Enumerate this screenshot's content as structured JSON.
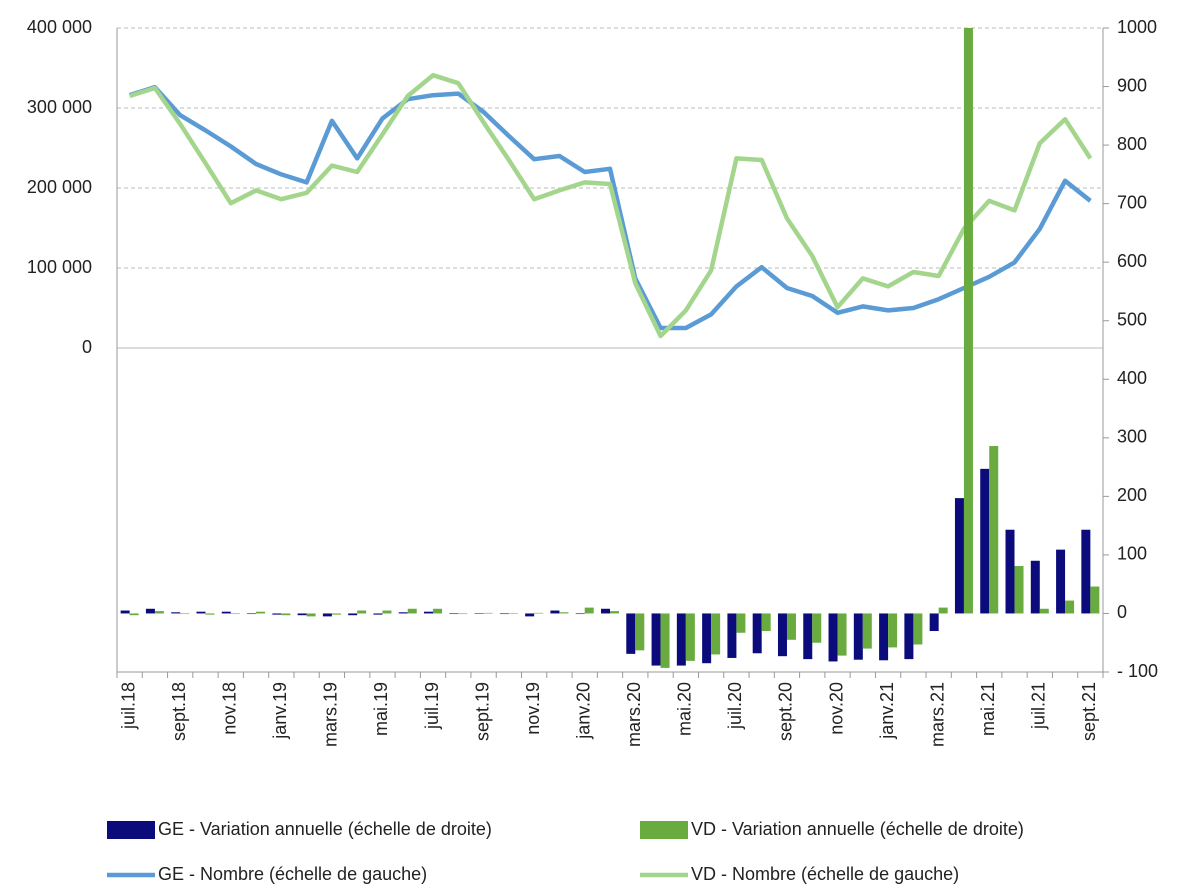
{
  "chart_data": {
    "type": "combo",
    "categories": [
      "juil.18",
      null,
      "sept.18",
      null,
      "nov.18",
      null,
      "janv.19",
      null,
      "mars.19",
      null,
      "mai.19",
      null,
      "juil.19",
      null,
      "sept.19",
      null,
      "nov.19",
      null,
      "janv.20",
      null,
      "mars.20",
      null,
      "mai.20",
      null,
      "juil.20",
      null,
      "sept.20",
      null,
      "nov.20",
      null,
      "janv.21",
      null,
      "mars.21",
      null,
      "mai.21",
      null,
      "juil.21",
      null,
      "sept.21"
    ],
    "ylim": [
      -405000,
      400000
    ],
    "yticks": [
      0,
      {
        "value": 100000,
        "label": "100 000"
      },
      {
        "value": 200000,
        "label": "200 000"
      },
      {
        "value": 300000,
        "label": "300 000"
      },
      {
        "value": 400000,
        "label": "400 000"
      }
    ],
    "y2lim": [
      -100,
      1000
    ],
    "y2ticks": [
      {
        "value": -100,
        "label": "- 100"
      },
      0,
      100,
      200,
      300,
      400,
      500,
      600,
      700,
      800,
      900,
      1000
    ],
    "grid": true,
    "legend": "bottom",
    "series": [
      {
        "name": "GE - Variation annuelle (échelle de droite)",
        "type": "bar",
        "axis": "y2",
        "color": "#0b0b7c",
        "values": [
          5,
          8,
          2,
          3,
          3,
          -1,
          -2,
          -3,
          -5,
          -3,
          -2,
          2,
          3,
          -1,
          0,
          -1,
          -5,
          5,
          -1,
          8,
          -69,
          -89,
          -89,
          -85,
          -76,
          -68,
          -73,
          -78,
          -82,
          -79,
          -80,
          -78,
          -30,
          197,
          247,
          143,
          90,
          109,
          143
        ]
      },
      {
        "name": "VD - Variation annuelle (échelle de droite)",
        "type": "bar",
        "axis": "y2",
        "color": "#6aab3f",
        "values": [
          -3,
          4,
          -1,
          -2,
          -1,
          3,
          -3,
          -5,
          -2,
          5,
          5,
          8,
          8,
          -1,
          1,
          0,
          1,
          2,
          10,
          4,
          -63,
          -93,
          -81,
          -70,
          -33,
          -30,
          -45,
          -50,
          -72,
          -60,
          -58,
          -53,
          10,
          1000,
          286,
          81,
          8,
          22,
          46
        ]
      },
      {
        "name": "GE - Nombre (échelle de gauche)",
        "type": "line",
        "axis": "y",
        "color": "#5b9bd5",
        "values": [
          316000,
          326000,
          291000,
          272000,
          252000,
          230000,
          217000,
          207000,
          284000,
          237000,
          287000,
          311000,
          316000,
          318000,
          295000,
          265000,
          236000,
          240000,
          220000,
          224000,
          87000,
          25000,
          25000,
          42000,
          77000,
          101000,
          75000,
          65000,
          44000,
          52000,
          47000,
          50000,
          61000,
          75000,
          89000,
          107000,
          149000,
          209000,
          184000
        ]
      },
      {
        "name": "VD - Nombre (échelle de gauche)",
        "type": "line",
        "axis": "y",
        "color": "#a3d68c",
        "values": [
          315000,
          325000,
          280000,
          231000,
          181000,
          197000,
          186000,
          194000,
          228000,
          220000,
          267000,
          315000,
          341000,
          331000,
          282000,
          235000,
          186000,
          197000,
          207000,
          205000,
          81000,
          15000,
          47000,
          97000,
          237000,
          235000,
          162000,
          115000,
          51000,
          87000,
          77000,
          95000,
          90000,
          149000,
          184000,
          172000,
          256000,
          286000,
          237000
        ]
      }
    ]
  }
}
